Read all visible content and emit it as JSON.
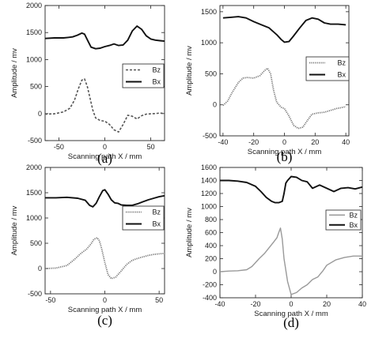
{
  "chart_data": [
    {
      "type": "line",
      "panel_label": "(a)",
      "xlabel": "Scanning path X / mm",
      "ylabel": "Amplitude / mv",
      "xlim": [
        -65,
        65
      ],
      "ylim": [
        -500,
        2000
      ],
      "xticks": [
        -50,
        0,
        50
      ],
      "yticks": [
        -500,
        0,
        500,
        1000,
        1500,
        2000
      ],
      "legend_position": "right",
      "series": [
        {
          "name": "Bz",
          "style": "dashed",
          "x": [
            -65,
            -55,
            -45,
            -38,
            -33,
            -29,
            -25,
            -22,
            -19,
            -16,
            -13,
            -10,
            -5,
            0,
            5,
            10,
            15,
            20,
            25,
            30,
            35,
            40,
            45,
            50,
            55,
            60,
            65
          ],
          "y": [
            -10,
            -5,
            30,
            100,
            250,
            450,
            620,
            640,
            500,
            280,
            60,
            -80,
            -130,
            -140,
            -200,
            -300,
            -340,
            -200,
            -30,
            -50,
            -100,
            -40,
            -10,
            -5,
            0,
            10,
            0
          ]
        },
        {
          "name": "Bx",
          "style": "solid",
          "x": [
            -65,
            -55,
            -45,
            -40,
            -35,
            -30,
            -25,
            -22,
            -18,
            -15,
            -10,
            -5,
            0,
            5,
            10,
            15,
            20,
            25,
            30,
            35,
            40,
            45,
            50,
            55,
            60,
            65
          ],
          "y": [
            1390,
            1400,
            1400,
            1410,
            1420,
            1450,
            1490,
            1470,
            1330,
            1230,
            1200,
            1210,
            1240,
            1260,
            1290,
            1260,
            1270,
            1360,
            1530,
            1620,
            1560,
            1440,
            1380,
            1360,
            1350,
            1340
          ]
        }
      ]
    },
    {
      "type": "line",
      "panel_label": "(b)",
      "xlabel": "Scanning path X / mm",
      "ylabel": "Amplitude / mv",
      "xlim": [
        -42,
        42
      ],
      "ylim": [
        -500,
        1600
      ],
      "xticks": [
        -40,
        -20,
        0,
        20,
        40
      ],
      "yticks": [
        -500,
        0,
        500,
        1000,
        1500
      ],
      "legend_position": "right",
      "series": [
        {
          "name": "Bz",
          "style": "dotted",
          "x": [
            -40,
            -37,
            -34,
            -30,
            -27,
            -24,
            -20,
            -16,
            -13,
            -11,
            -9,
            -7,
            -5,
            -2,
            0,
            3,
            6,
            9,
            12,
            15,
            18,
            22,
            26,
            30,
            34,
            38,
            40
          ],
          "y": [
            -10,
            60,
            200,
            360,
            430,
            440,
            430,
            470,
            550,
            590,
            500,
            230,
            40,
            -40,
            -60,
            -180,
            -330,
            -380,
            -360,
            -250,
            -150,
            -130,
            -120,
            -90,
            -60,
            -40,
            -30
          ]
        },
        {
          "name": "Bx",
          "style": "solid",
          "x": [
            -40,
            -35,
            -30,
            -25,
            -20,
            -15,
            -10,
            -5,
            -2,
            0,
            3,
            6,
            10,
            14,
            18,
            22,
            26,
            30,
            35,
            40
          ],
          "y": [
            1400,
            1410,
            1420,
            1400,
            1340,
            1290,
            1240,
            1130,
            1050,
            1010,
            1020,
            1110,
            1240,
            1360,
            1400,
            1380,
            1320,
            1300,
            1300,
            1290
          ]
        }
      ]
    },
    {
      "type": "line",
      "panel_label": "(c)",
      "xlabel": "Scanning path X / mm",
      "ylabel": "Amplitude / mv",
      "xlim": [
        -55,
        55
      ],
      "ylim": [
        -500,
        2000
      ],
      "xticks": [
        -50,
        0,
        50
      ],
      "yticks": [
        -500,
        0,
        500,
        1000,
        1500,
        2000
      ],
      "legend_position": "right",
      "series": [
        {
          "name": "Bz",
          "style": "dotted",
          "x": [
            -55,
            -45,
            -35,
            -28,
            -22,
            -17,
            -13,
            -10,
            -7,
            -5,
            -3,
            0,
            3,
            6,
            10,
            15,
            20,
            25,
            30,
            35,
            40,
            45,
            50,
            55
          ],
          "y": [
            0,
            10,
            60,
            180,
            300,
            380,
            480,
            580,
            610,
            550,
            400,
            120,
            -120,
            -200,
            -170,
            -50,
            80,
            160,
            200,
            230,
            260,
            280,
            290,
            300
          ]
        },
        {
          "name": "Bx",
          "style": "solid",
          "x": [
            -55,
            -45,
            -35,
            -25,
            -18,
            -14,
            -11,
            -8,
            -5,
            -2,
            0,
            3,
            6,
            9,
            12,
            15,
            20,
            25,
            30,
            35,
            40,
            45,
            50,
            55
          ],
          "y": [
            1400,
            1400,
            1410,
            1390,
            1350,
            1250,
            1220,
            1290,
            1420,
            1540,
            1560,
            1470,
            1360,
            1300,
            1290,
            1260,
            1250,
            1250,
            1280,
            1320,
            1360,
            1390,
            1420,
            1440
          ]
        }
      ]
    },
    {
      "type": "line",
      "panel_label": "(d)",
      "xlabel": "Scanning path X / mm",
      "ylabel": "Amplitude / mv",
      "xlim": [
        -40,
        40
      ],
      "ylim": [
        -400,
        1600
      ],
      "xticks": [
        -40,
        -20,
        0,
        20,
        40
      ],
      "yticks": [
        -400,
        -200,
        0,
        200,
        400,
        600,
        800,
        1000,
        1200,
        1400,
        1600
      ],
      "legend_position": "right",
      "series": [
        {
          "name": "Bz",
          "style": "solid-light",
          "x": [
            -40,
            -35,
            -30,
            -25,
            -22,
            -18,
            -15,
            -12,
            -10,
            -8,
            -7,
            -6,
            -5,
            -4,
            -2,
            0,
            3,
            6,
            9,
            12,
            15,
            18,
            20,
            25,
            30,
            35,
            40
          ],
          "y": [
            0,
            10,
            15,
            30,
            80,
            200,
            280,
            380,
            450,
            520,
            600,
            670,
            500,
            200,
            -150,
            -350,
            -320,
            -250,
            -200,
            -120,
            -80,
            20,
            100,
            180,
            220,
            240,
            240
          ]
        },
        {
          "name": "Bx",
          "style": "solid",
          "x": [
            -40,
            -35,
            -30,
            -25,
            -20,
            -17,
            -14,
            -11,
            -9,
            -7,
            -5,
            -4,
            -3,
            -2,
            0,
            3,
            6,
            9,
            12,
            16,
            20,
            24,
            28,
            32,
            36,
            40
          ],
          "y": [
            1400,
            1400,
            1390,
            1370,
            1310,
            1230,
            1140,
            1080,
            1060,
            1060,
            1080,
            1200,
            1360,
            1400,
            1460,
            1450,
            1400,
            1380,
            1280,
            1330,
            1280,
            1230,
            1280,
            1290,
            1270,
            1300
          ]
        }
      ]
    }
  ]
}
